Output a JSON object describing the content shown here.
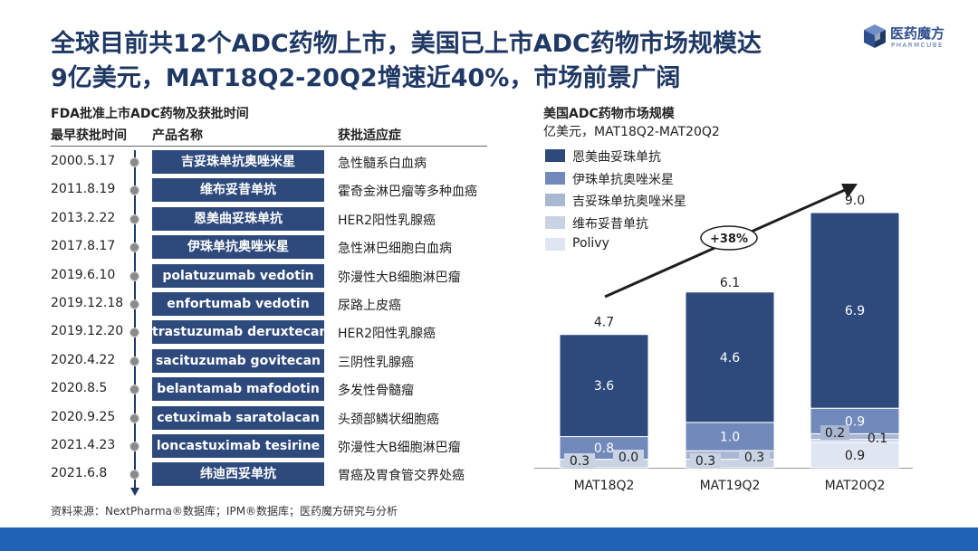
{
  "title": {
    "line1": "全球目前共12个ADC药物上市，美国已上市ADC药物市场规模达",
    "line2": "9亿美元，MAT18Q2-20Q2增速近40%，市场前景广阔"
  },
  "logo": {
    "name_cn": "医药魔方",
    "name_en": "PHARMCUBE"
  },
  "table": {
    "caption": "FDA批准上市ADC药物及获批时间",
    "headers": {
      "date": "最早获批时间",
      "product": "产品名称",
      "indication": "获批适应症"
    },
    "rows": [
      {
        "date": "2000.5.17",
        "product": "吉妥珠单抗奥唑米星",
        "indication": "急性髓系白血病"
      },
      {
        "date": "2011.8.19",
        "product": "维布妥昔单抗",
        "indication": "霍奇金淋巴瘤等多种血癌"
      },
      {
        "date": "2013.2.22",
        "product": "恩美曲妥珠单抗",
        "indication": "HER2阳性乳腺癌"
      },
      {
        "date": "2017.8.17",
        "product": "伊珠单抗奥唑米星",
        "indication": "急性淋巴细胞白血病"
      },
      {
        "date": "2019.6.10",
        "product": "polatuzumab vedotin",
        "indication": "弥漫性大B细胞淋巴瘤"
      },
      {
        "date": "2019.12.18",
        "product": "enfortumab vedotin",
        "indication": "尿路上皮癌"
      },
      {
        "date": "2019.12.20",
        "product": "trastuzumab deruxtecan",
        "indication": "HER2阳性乳腺癌"
      },
      {
        "date": "2020.4.22",
        "product": "sacituzumab govitecan",
        "indication": "三阴性乳腺癌"
      },
      {
        "date": "2020.8.5",
        "product": "belantamab mafodotin",
        "indication": "多发性骨髓瘤"
      },
      {
        "date": "2020.9.25",
        "product": "cetuximab saratolacan",
        "indication": "头颈部鳞状细胞癌"
      },
      {
        "date": "2021.4.23",
        "product": "loncastuximab tesirine",
        "indication": "弥漫性大B细胞淋巴瘤"
      },
      {
        "date": "2021.6.8",
        "product": "纬迪西妥单抗",
        "indication": "胃癌及胃食管交界处癌"
      }
    ]
  },
  "source": "资料来源：NextPharma®数据库；IPM®数据库；医药魔方研究与分析",
  "chart_data": {
    "type": "bar",
    "stacked": true,
    "title": "美国ADC药物市场规模",
    "subtitle": "亿美元，MAT18Q2-MAT20Q2",
    "categories": [
      "MAT18Q2",
      "MAT19Q2",
      "MAT20Q2"
    ],
    "totals": [
      4.7,
      6.1,
      9.0
    ],
    "total_labels": [
      "4.7",
      "6.1",
      "9.0"
    ],
    "growth_label": "+38%",
    "series": [
      {
        "name": "Polivy",
        "color": "#dfe6f1",
        "values": [
          0.0,
          0.0,
          0.9
        ],
        "labels": [
          "",
          "",
          "0.9"
        ]
      },
      {
        "name": "维布妥昔单抗",
        "color": "#c9d3e4",
        "values": [
          0.3,
          0.3,
          0.1
        ],
        "labels": [
          "0.3",
          "0.3",
          "0.1"
        ]
      },
      {
        "name": "吉妥珠单抗奥唑米星",
        "color": "#a9b7d3",
        "values": [
          0.0,
          0.3,
          0.2
        ],
        "labels": [
          "0.0",
          "0.3",
          "0.2"
        ]
      },
      {
        "name": "伊珠单抗奥唑米星",
        "color": "#7189bb",
        "values": [
          0.8,
          1.0,
          0.9
        ],
        "labels": [
          "0.8",
          "1.0",
          "0.9"
        ]
      },
      {
        "name": "恩美曲妥珠单抗",
        "color": "#2e4a7d",
        "values": [
          3.6,
          4.6,
          6.9
        ],
        "labels": [
          "3.6",
          "4.6",
          "6.9"
        ]
      }
    ],
    "legend_order": [
      "恩美曲妥珠单抗",
      "伊珠单抗奥唑米星",
      "吉妥珠单抗奥唑米星",
      "维布妥昔单抗",
      "Polivy"
    ],
    "ylim": [
      0,
      9.0
    ],
    "grid": false,
    "legend_position": "top-left"
  },
  "colors": {
    "title": "#1f3864",
    "accent": "#2e4a7d",
    "footer_bar": "#1f63b4"
  }
}
